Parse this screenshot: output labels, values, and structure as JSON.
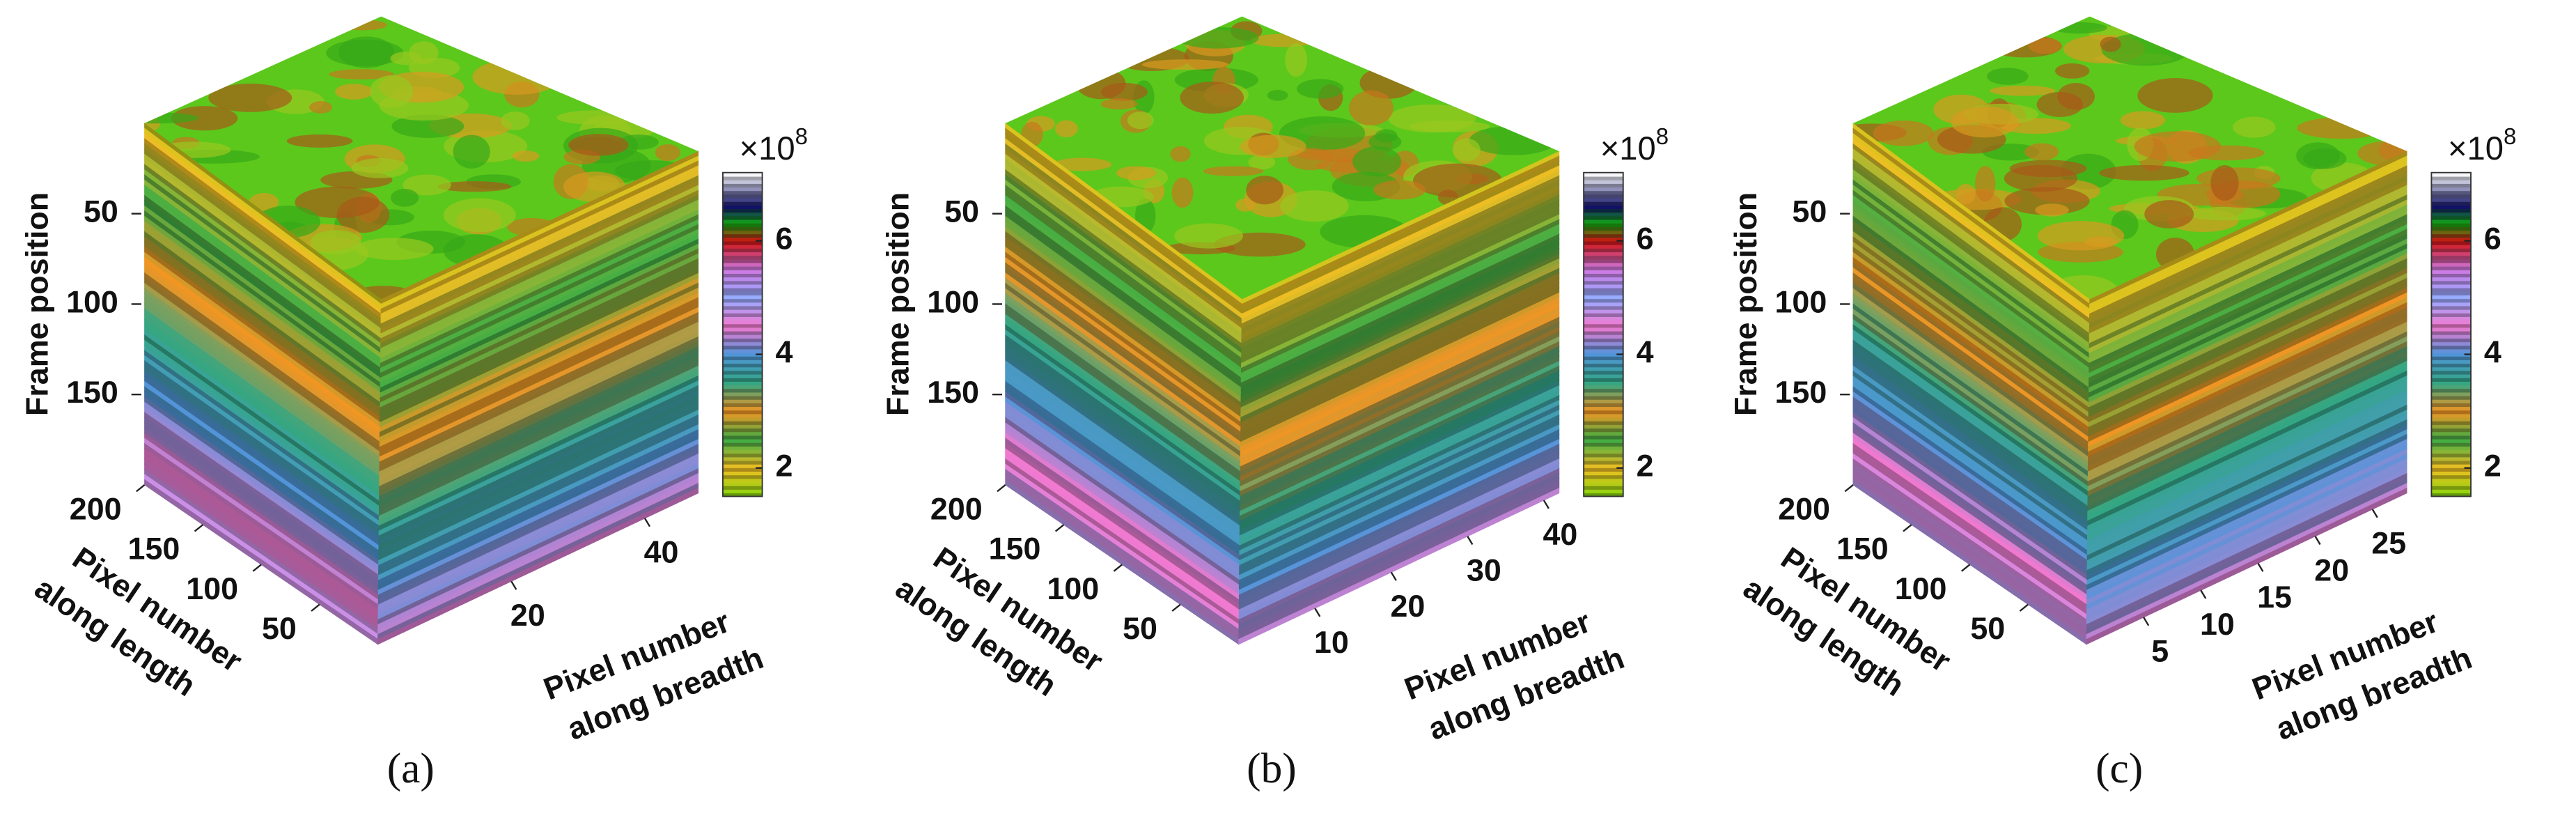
{
  "chart_data": [
    {
      "type": "cube",
      "panel_label": "(a)",
      "zlabel": "Frame position",
      "zlim": [
        0,
        200
      ],
      "zticks": [
        50,
        100,
        150
      ],
      "xlabel": [
        "Pixel number",
        "along length"
      ],
      "xlim": [
        0,
        200
      ],
      "xticks": [
        50,
        100,
        150,
        200
      ],
      "ylabel": [
        "Pixel number",
        "along breadth"
      ],
      "ylim": [
        0,
        48
      ],
      "yticks": [
        20,
        40
      ],
      "colorbar": {
        "lim": [
          1.5,
          7.2
        ],
        "ticks": [
          2,
          4,
          6
        ],
        "multiplier": "×10",
        "power": "8"
      }
    },
    {
      "type": "cube",
      "panel_label": "(b)",
      "zlabel": "Frame position",
      "zlim": [
        0,
        200
      ],
      "zticks": [
        50,
        100,
        150
      ],
      "xlabel": [
        "Pixel number",
        "along length"
      ],
      "xlim": [
        0,
        200
      ],
      "xticks": [
        50,
        100,
        150,
        200
      ],
      "ylabel": [
        "Pixel number",
        "along breadth"
      ],
      "ylim": [
        0,
        42
      ],
      "yticks": [
        10,
        20,
        30,
        40
      ],
      "colorbar": {
        "lim": [
          1.5,
          7.2
        ],
        "ticks": [
          2,
          4,
          6
        ],
        "multiplier": "×10",
        "power": "8"
      }
    },
    {
      "type": "cube",
      "panel_label": "(c)",
      "zlabel": "Frame position",
      "zlim": [
        0,
        200
      ],
      "zticks": [
        50,
        100,
        150
      ],
      "xlabel": [
        "Pixel number",
        "along length"
      ],
      "xlim": [
        0,
        200
      ],
      "xticks": [
        50,
        100,
        150,
        200
      ],
      "ylabel": [
        "Pixel number",
        "along breadth"
      ],
      "ylim": [
        0,
        28
      ],
      "yticks": [
        5,
        10,
        15,
        20,
        25
      ],
      "colorbar": {
        "lim": [
          1.5,
          7.2
        ],
        "ticks": [
          2,
          4,
          6
        ],
        "multiplier": "×10",
        "power": "8"
      }
    }
  ]
}
